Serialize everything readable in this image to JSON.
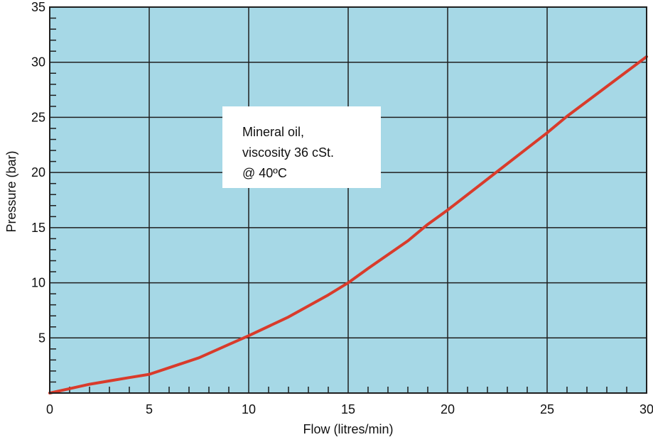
{
  "chart_data": {
    "type": "line",
    "title": "",
    "xlabel": "Flow (litres/min)",
    "ylabel": "Pressure (bar)",
    "xlim": [
      0,
      30
    ],
    "ylim": [
      0,
      35
    ],
    "x_ticks": [
      "0",
      "5",
      "10",
      "15",
      "20",
      "25",
      "30"
    ],
    "y_ticks": [
      "5",
      "10",
      "15",
      "20",
      "25",
      "30",
      "35"
    ],
    "grid": true,
    "legend": "none",
    "annotation": [
      "Mineral oil,",
      "viscosity 36 cSt.",
      "@ 40ºC"
    ],
    "colors": {
      "plot_background": "#a6d8e6",
      "line": "#d93b2b",
      "grid": "#1f1f1f"
    },
    "series": [
      {
        "x": [
          0,
          1,
          2,
          3,
          4,
          5,
          6,
          7.5,
          9,
          10,
          12,
          14,
          15,
          16,
          18,
          19,
          20,
          22,
          24,
          25,
          26,
          28,
          30
        ],
        "y": [
          0,
          0.4,
          0.8,
          1.1,
          1.4,
          1.7,
          2.3,
          3.2,
          4.4,
          5.2,
          6.9,
          8.9,
          10,
          11.3,
          13.8,
          15.3,
          16.6,
          19.4,
          22.2,
          23.6,
          25.1,
          27.8,
          30.5
        ]
      }
    ]
  }
}
